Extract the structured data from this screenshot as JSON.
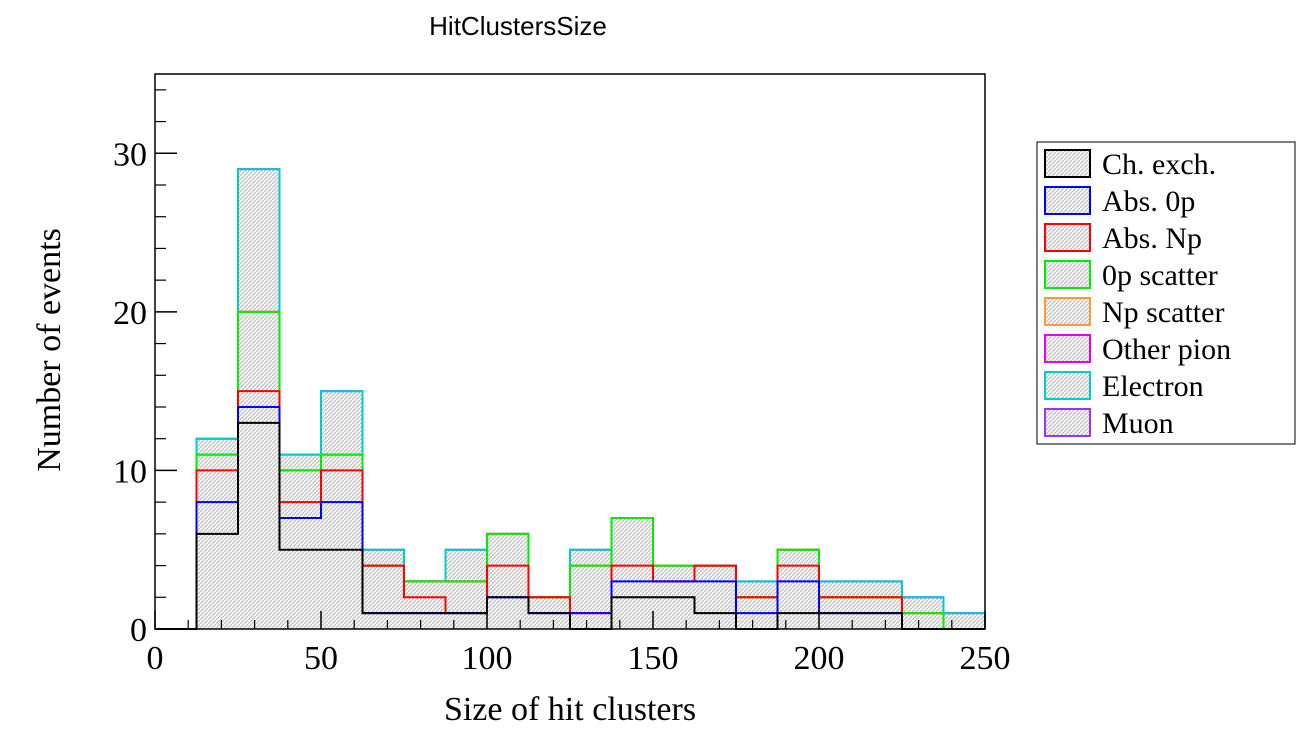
{
  "chart_data": {
    "type": "bar",
    "title": "HitClustersSize",
    "xlabel": "Size of hit clusters",
    "ylabel": "Number of events",
    "xlim": [
      0,
      250
    ],
    "ylim": [
      0,
      35
    ],
    "x_ticks": [
      "0",
      "50",
      "100",
      "150",
      "200",
      "250"
    ],
    "y_ticks": [
      "0",
      "10",
      "20",
      "30"
    ],
    "bin_edges": [
      12.5,
      25,
      37.5,
      50,
      62.5,
      75,
      87.5,
      100,
      112.5,
      125,
      137.5,
      150,
      162.5,
      175,
      187.5,
      200,
      212.5,
      225,
      237.5,
      250
    ],
    "stacked": true,
    "legend_position": "right",
    "series": [
      {
        "name": "Ch. exch.",
        "color": "#000000",
        "cumulative_values": [
          6,
          13,
          5,
          5,
          1,
          1,
          1,
          2,
          1,
          0,
          2,
          2,
          1,
          0,
          1,
          1,
          1,
          0,
          0
        ]
      },
      {
        "name": "Abs. 0p",
        "color": "#0000ff",
        "cumulative_values": [
          8,
          14,
          7,
          8,
          1,
          1,
          1,
          2,
          1,
          1,
          3,
          3,
          3,
          1,
          3,
          1,
          1,
          0,
          0
        ]
      },
      {
        "name": "Abs. Np",
        "color": "#ff0000",
        "cumulative_values": [
          10,
          15,
          8,
          10,
          4,
          2,
          1,
          4,
          2,
          1,
          4,
          3,
          4,
          2,
          4,
          2,
          2,
          0,
          0
        ]
      },
      {
        "name": "0p scatter",
        "color": "#00ee00",
        "cumulative_values": [
          11,
          20,
          10,
          11,
          4,
          3,
          3,
          6,
          2,
          4,
          7,
          4,
          4,
          2,
          5,
          2,
          2,
          1,
          0
        ]
      },
      {
        "name": "Np scatter",
        "color": "#ff9933",
        "cumulative_values": [
          11,
          20,
          10,
          11,
          4,
          3,
          3,
          6,
          2,
          4,
          7,
          4,
          4,
          2,
          5,
          2,
          2,
          1,
          0
        ]
      },
      {
        "name": "Other pion",
        "color": "#ee00ee",
        "cumulative_values": [
          11,
          20,
          10,
          11,
          4,
          3,
          3,
          6,
          2,
          4,
          7,
          4,
          4,
          2,
          5,
          2,
          2,
          1,
          0
        ]
      },
      {
        "name": "Electron",
        "color": "#00cccc",
        "cumulative_values": [
          12,
          29,
          11,
          15,
          5,
          3,
          5,
          6,
          2,
          5,
          7,
          4,
          4,
          3,
          5,
          3,
          3,
          2,
          1
        ]
      },
      {
        "name": "Muon",
        "color": "#9933ff",
        "cumulative_values": [
          12,
          29,
          11,
          15,
          5,
          3,
          5,
          6,
          2,
          5,
          7,
          4,
          4,
          3,
          5,
          3,
          3,
          2,
          1
        ]
      }
    ]
  }
}
